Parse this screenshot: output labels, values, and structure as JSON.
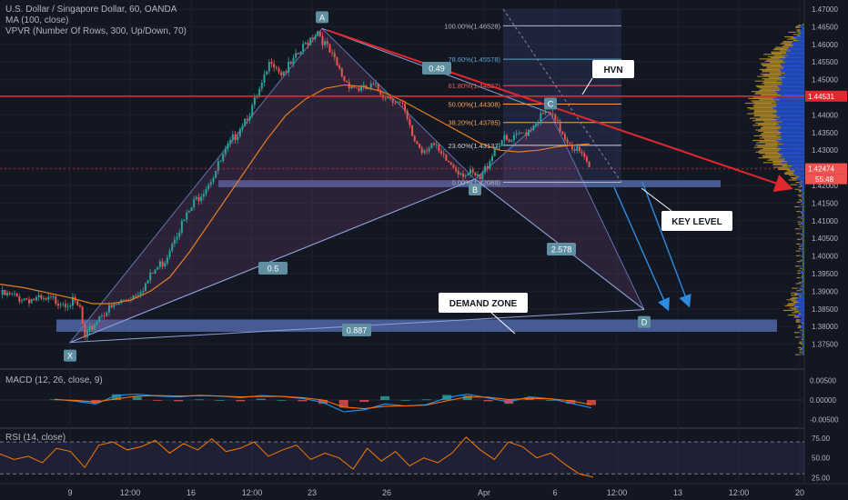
{
  "header": {
    "symbol_title": "U.S. Dollar / Singapore Dollar, 60, OANDA",
    "ma_label": "MA (100, close)",
    "vpvr_label": "VPVR (Number Of Rows, 300, Up/Down, 70)"
  },
  "chart_data": [
    {
      "type": "candlestick",
      "title": "U.S. Dollar / Singapore Dollar, 60, OANDA",
      "y_range": [
        1.37,
        1.47
      ],
      "y_ticks": [
        "1.47000",
        "1.46500",
        "1.46000",
        "1.45500",
        "1.45000",
        "1.44500",
        "1.44000",
        "1.43500",
        "1.43000",
        "1.42500",
        "1.42000",
        "1.41500",
        "1.41000",
        "1.40500",
        "1.40000",
        "1.39500",
        "1.39000",
        "1.38500",
        "1.38000",
        "1.37500"
      ],
      "x_ticks": [
        "9",
        "12:00",
        "16",
        "12:00",
        "23",
        "26",
        "Apr",
        "6",
        "12:00",
        "13",
        "12:00",
        "20"
      ],
      "last_price": "1.42474",
      "countdown": "55:48",
      "horizontal_line_price": "1.44531",
      "pattern_points": [
        {
          "label": "X",
          "price": 1.3755
        },
        {
          "label": "A",
          "price": 1.4645
        },
        {
          "label": "B",
          "price": 1.4218
        },
        {
          "label": "C",
          "price": 1.4405
        },
        {
          "label": "D",
          "price": 1.3848
        }
      ],
      "pattern_ratios": [
        "0.5",
        "0.887",
        "0.49",
        "2.578"
      ],
      "fib_levels": [
        {
          "label": "100.00%(1.46528)",
          "price": 1.46528,
          "color": "#b2b5be"
        },
        {
          "label": "78.60%(1.45578)",
          "price": 1.45578,
          "color": "#5ba4cf"
        },
        {
          "label": "61.80%(1.44832)",
          "price": 1.44832,
          "color": "#f05a5a"
        },
        {
          "label": "50.00%(1.44308)",
          "price": 1.44308,
          "color": "#f7a35c"
        },
        {
          "label": "38.20%(1.43785)",
          "price": 1.43785,
          "color": "#f7a35c"
        },
        {
          "label": "23.60%(1.43137)",
          "price": 1.43137,
          "color": "#cfd1d6"
        },
        {
          "label": "0.00%(1.42089)",
          "price": 1.42089,
          "color": "#b2b5be"
        }
      ],
      "annotations": [
        "HVN",
        "KEY LEVEL",
        "DEMAND ZONE"
      ],
      "zones": [
        {
          "name": "KEY LEVEL",
          "from": 1.4195,
          "to": 1.4215
        },
        {
          "name": "DEMAND ZONE",
          "from": 1.3785,
          "to": 1.382
        }
      ],
      "close_path": [
        [
          0,
          1.389
        ],
        [
          5,
          1.3885
        ],
        [
          10,
          1.388
        ],
        [
          14,
          1.3878
        ],
        [
          18,
          1.387
        ],
        [
          22,
          1.3875
        ],
        [
          26,
          1.3872
        ],
        [
          30,
          1.3868
        ],
        [
          33,
          1.385
        ],
        [
          35,
          1.376
        ],
        [
          38,
          1.38
        ],
        [
          42,
          1.384
        ],
        [
          46,
          1.385
        ],
        [
          50,
          1.387
        ],
        [
          55,
          1.389
        ],
        [
          60,
          1.392
        ],
        [
          64,
          1.396
        ],
        [
          68,
          1.399
        ],
        [
          72,
          1.406
        ],
        [
          76,
          1.41
        ],
        [
          80,
          1.415
        ],
        [
          84,
          1.419
        ],
        [
          88,
          1.423
        ],
        [
          92,
          1.428
        ],
        [
          96,
          1.433
        ],
        [
          100,
          1.438
        ],
        [
          104,
          1.442
        ],
        [
          108,
          1.448
        ],
        [
          112,
          1.456
        ],
        [
          116,
          1.452
        ],
        [
          120,
          1.454
        ],
        [
          124,
          1.458
        ],
        [
          128,
          1.462
        ],
        [
          131,
          1.464
        ],
        [
          134,
          1.46
        ],
        [
          138,
          1.455
        ],
        [
          142,
          1.45
        ],
        [
          146,
          1.448
        ],
        [
          150,
          1.447
        ],
        [
          154,
          1.448
        ],
        [
          158,
          1.446
        ],
        [
          162,
          1.445
        ],
        [
          166,
          1.442
        ],
        [
          170,
          1.434
        ],
        [
          174,
          1.43
        ],
        [
          178,
          1.432
        ],
        [
          182,
          1.428
        ],
        [
          186,
          1.426
        ],
        [
          190,
          1.424
        ],
        [
          194,
          1.423
        ],
        [
          198,
          1.4215
        ],
        [
          201,
          1.426
        ],
        [
          204,
          1.431
        ],
        [
          207,
          1.433
        ],
        [
          210,
          1.432
        ],
        [
          214,
          1.434
        ],
        [
          218,
          1.436
        ],
        [
          222,
          1.439
        ],
        [
          226,
          1.4405
        ],
        [
          230,
          1.437
        ],
        [
          234,
          1.433
        ],
        [
          238,
          1.43
        ],
        [
          241,
          1.427
        ],
        [
          243,
          1.425
        ]
      ],
      "ma_path": [
        [
          0,
          1.392
        ],
        [
          10,
          1.391
        ],
        [
          20,
          1.3895
        ],
        [
          30,
          1.388
        ],
        [
          38,
          1.3865
        ],
        [
          46,
          1.3865
        ],
        [
          54,
          1.3875
        ],
        [
          62,
          1.39
        ],
        [
          70,
          1.394
        ],
        [
          78,
          1.401
        ],
        [
          86,
          1.409
        ],
        [
          94,
          1.417
        ],
        [
          102,
          1.425
        ],
        [
          110,
          1.433
        ],
        [
          118,
          1.44
        ],
        [
          126,
          1.4445
        ],
        [
          134,
          1.4475
        ],
        [
          142,
          1.4485
        ],
        [
          150,
          1.448
        ],
        [
          158,
          1.4465
        ],
        [
          166,
          1.444
        ],
        [
          174,
          1.441
        ],
        [
          182,
          1.438
        ],
        [
          190,
          1.435
        ],
        [
          198,
          1.432
        ],
        [
          206,
          1.43
        ],
        [
          214,
          1.4295
        ],
        [
          222,
          1.43
        ],
        [
          230,
          1.431
        ],
        [
          238,
          1.4315
        ],
        [
          243,
          1.4318
        ]
      ]
    },
    {
      "type": "line",
      "title": "MACD (12, 26, close, 9)",
      "y_ticks": [
        "0.00500",
        "0.00000",
        "-0.00500"
      ],
      "y_range": [
        -0.006,
        0.006
      ],
      "series": [
        {
          "name": "MACD",
          "color": "#2196f3",
          "values": [
            0.0002,
            -0.0003,
            -0.001,
            0.0012,
            0.0015,
            0.001,
            0.0008,
            0.0012,
            0.001,
            0.0006,
            0.0011,
            0.0009,
            0.0004,
            -0.0006,
            -0.003,
            -0.0025,
            -0.001,
            -0.0015,
            -0.0012,
            0.0006,
            0.0015,
            0.0005,
            -0.0005,
            0.0008,
            0.0003,
            -0.0008,
            -0.002
          ]
        },
        {
          "name": "Signal",
          "color": "#ff6d00",
          "values": [
            0.0001,
            -0.0001,
            -0.0005,
            0.0003,
            0.001,
            0.0011,
            0.001,
            0.0011,
            0.001,
            0.0008,
            0.0009,
            0.0009,
            0.0006,
            0.0,
            -0.0018,
            -0.0022,
            -0.0016,
            -0.0015,
            -0.0013,
            -0.0002,
            0.0008,
            0.0007,
            0.0001,
            0.0004,
            0.0003,
            -0.0002,
            -0.0012
          ]
        }
      ]
    },
    {
      "type": "line",
      "title": "RSI (14, close)",
      "y_ticks": [
        "75.00",
        "50.00",
        "25.00"
      ],
      "y_range": [
        20,
        85
      ],
      "series": [
        {
          "name": "RSI",
          "color": "#f57c00",
          "values": [
            55,
            48,
            52,
            44,
            62,
            58,
            38,
            66,
            70,
            60,
            64,
            72,
            56,
            68,
            60,
            74,
            58,
            62,
            70,
            52,
            60,
            66,
            48,
            56,
            50,
            36,
            62,
            46,
            58,
            40,
            50,
            44,
            56,
            76,
            60,
            48,
            70,
            64,
            50,
            56,
            42,
            30,
            26
          ]
        }
      ]
    }
  ]
}
